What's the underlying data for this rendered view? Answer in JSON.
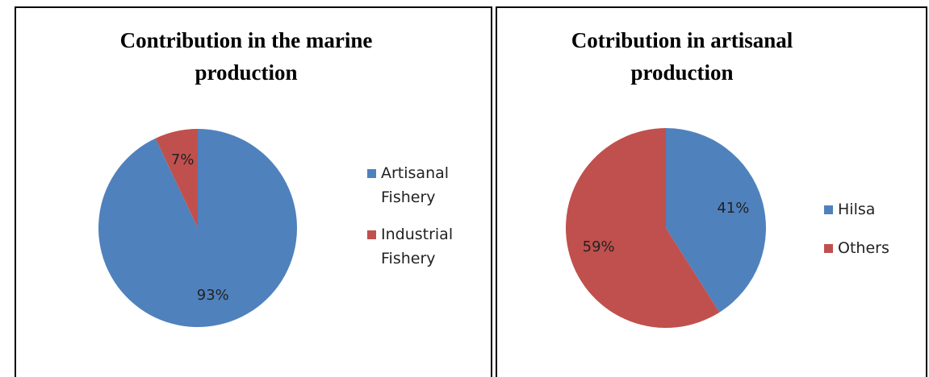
{
  "chart_data": [
    {
      "type": "pie",
      "title": "Contribution in the marine production",
      "categories": [
        "Artisanal Fishery",
        "Industrial Fishery"
      ],
      "values": [
        93,
        7
      ],
      "value_labels": [
        "93%",
        "7%"
      ],
      "colors": [
        "#4f81bd",
        "#c0504d"
      ],
      "legend": "right"
    },
    {
      "type": "pie",
      "title": "Cotribution in artisanal production",
      "categories": [
        "Hilsa",
        "Others"
      ],
      "values": [
        41,
        59
      ],
      "value_labels": [
        "41%",
        "59%"
      ],
      "colors": [
        "#4f81bd",
        "#c0504d"
      ],
      "legend": "right"
    }
  ]
}
